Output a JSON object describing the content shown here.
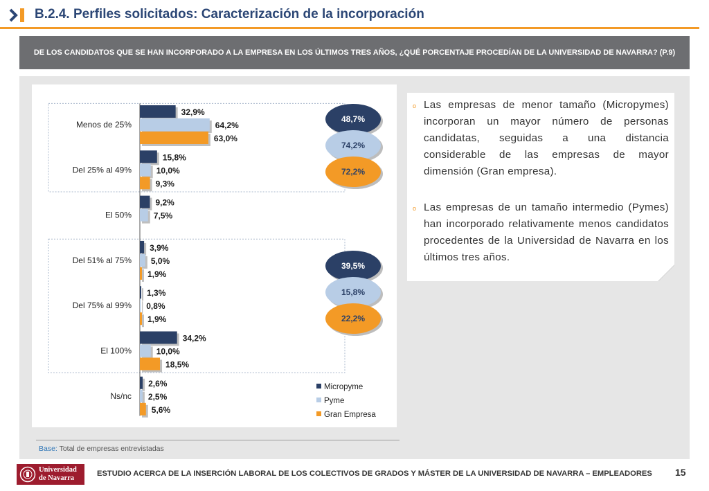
{
  "header": {
    "title": "B.2.4. Perfiles solicitados: Caracterización de la incorporación",
    "accent_color": "#f39a26",
    "title_color": "#2b4675"
  },
  "question": {
    "text": "DE LOS CANDIDATOS QUE SE HAN INCORPORADO A LA EMPRESA EN LOS ÚLTIMOS TRES AÑOS, ¿QUÉ PORCENTAJE PROCEDÍAN DE LA UNIVERSIDAD DE NAVARRA? (P.9)"
  },
  "chart_data": {
    "type": "bar",
    "orientation": "horizontal",
    "categories": [
      "Menos de 25%",
      "Del 25% al 49%",
      "El 50%",
      "Del 51% al 75%",
      "Del 75% al 99%",
      "El 100%",
      "Ns/nc"
    ],
    "series": [
      {
        "name": "Micropyme",
        "color": "#2b4066",
        "values": [
          32.9,
          15.8,
          9.2,
          3.9,
          1.3,
          34.2,
          2.6
        ],
        "labels": [
          "32,9%",
          "15,8%",
          "9,2%",
          "3,9%",
          "1,3%",
          "34,2%",
          "2,6%"
        ]
      },
      {
        "name": "Pyme",
        "color": "#b8cde6",
        "values": [
          64.2,
          10.0,
          7.5,
          5.0,
          0.8,
          10.0,
          2.5
        ],
        "labels": [
          "64,2%",
          "10,0%",
          "7,5%",
          "5,0%",
          "0,8%",
          "10,0%",
          "2,5%"
        ]
      },
      {
        "name": "Gran Empresa",
        "color": "#f39a26",
        "values": [
          63.0,
          9.3,
          null,
          1.9,
          1.9,
          18.5,
          5.6
        ],
        "labels": [
          "63,0%",
          "9,3%",
          "",
          "1,9%",
          "1,9%",
          "18,5%",
          "5,6%"
        ]
      }
    ],
    "xlim": [
      0,
      100
    ],
    "groups": [
      {
        "range": [
          "Menos de 25%",
          "Del 25% al 49%"
        ],
        "totals": [
          {
            "series": "Micropyme",
            "label": "48,7%"
          },
          {
            "series": "Pyme",
            "label": "74,2%"
          },
          {
            "series": "Gran Empresa",
            "label": "72,2%"
          }
        ]
      },
      {
        "range": [
          "Del 51% al 75%",
          "El 100%"
        ],
        "totals": [
          {
            "series": "Micropyme",
            "label": "39,5%"
          },
          {
            "series": "Pyme",
            "label": "15,8%"
          },
          {
            "series": "Gran Empresa",
            "label": "22,2%"
          }
        ]
      }
    ],
    "legend": "bottom-right"
  },
  "commentary": {
    "bullets": [
      "Las empresas de menor tamaño (Micropymes) incorporan un mayor número de personas candidatas, seguidas a una distancia considerable de las empresas de mayor dimensión (Gran empresa).",
      "Las empresas de un tamaño intermedio (Pymes) han incorporado relativamente menos candidatos procedentes de la Universidad de Navarra en los últimos tres años."
    ],
    "bullet_symbol": "o"
  },
  "base": {
    "label": "Base:",
    "text": " Total de empresas entrevistadas"
  },
  "footer": {
    "logo_text_1": "Universidad",
    "logo_text_2": "de Navarra",
    "study": "ESTUDIO ACERCA DE LA INSERCIÓN LABORAL DE LOS COLECTIVOS DE GRADOS Y MÁSTER DE LA UNIVERSIDAD DE NAVARRA – EMPLEADORES",
    "page": "15"
  }
}
